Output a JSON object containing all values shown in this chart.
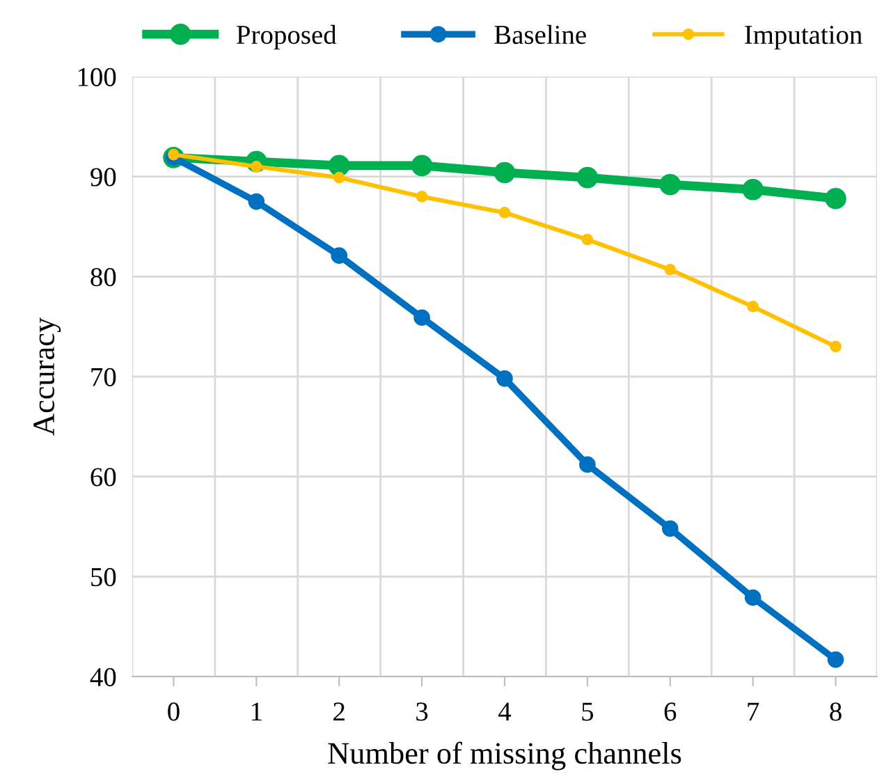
{
  "chart_data": {
    "type": "line",
    "xlabel": "Number of missing channels",
    "ylabel": "Accuracy",
    "categories": [
      "0",
      "1",
      "2",
      "3",
      "4",
      "5",
      "6",
      "7",
      "8"
    ],
    "series": [
      {
        "name": "Proposed",
        "color": "#00b050",
        "values": [
          91.9,
          91.5,
          91.1,
          91.1,
          90.4,
          89.9,
          89.2,
          88.7,
          87.8
        ]
      },
      {
        "name": "Baseline",
        "color": "#0070c0",
        "values": [
          91.9,
          87.5,
          82.1,
          75.9,
          69.8,
          61.2,
          54.8,
          47.9,
          41.7
        ]
      },
      {
        "name": "Imputation",
        "color": "#ffc000",
        "values": [
          92.2,
          91.0,
          89.9,
          88.0,
          86.4,
          83.7,
          80.7,
          77.0,
          73.0
        ]
      }
    ],
    "ylim": [
      40,
      100
    ],
    "yticks": [
      40,
      50,
      60,
      70,
      80,
      90,
      100
    ],
    "grid": true,
    "legend": "top",
    "marker": "circle",
    "line_style": "solid"
  }
}
